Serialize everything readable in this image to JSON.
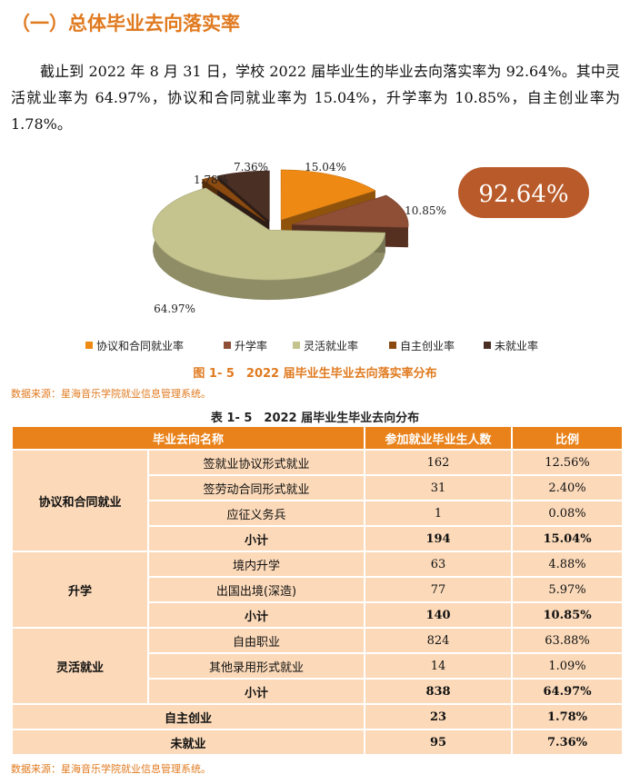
{
  "section": {
    "title": "（一）总体毕业去向落实率",
    "paragraph": "截止到 2022 年 8 月 31 日，学校 2022 届毕业生的毕业去向落实率为 92.64%。其中灵活就业率为 64.97%，协议和合同就业率为 15.04%，升学率为 10.85%，自主创业率为 1.78%。"
  },
  "figure": {
    "caption": "图 1- 5　2022 届毕业生毕业去向落实率分布",
    "source": "数据来源：星海音乐学院就业信息管理系统。",
    "badge": "92.64%",
    "badge_color": "#b95a2a"
  },
  "chart_data": {
    "type": "pie",
    "style": "3d-exploded",
    "categories": [
      "协议和合同就业率",
      "升学率",
      "灵活就业率",
      "自主创业率",
      "未就业率"
    ],
    "values": [
      15.04,
      10.85,
      64.97,
      1.78,
      7.36
    ],
    "labels": [
      "15.04%",
      "10.85%",
      "64.97%",
      "1.78%",
      "7.36%"
    ],
    "colors": [
      "#ee8a14",
      "#8e4f36",
      "#c5c48e",
      "#8a4a10",
      "#4a2f24"
    ],
    "legend_position": "bottom",
    "title": ""
  },
  "table": {
    "caption": "表 1- 5　2022 届毕业生毕业去向分布",
    "headers": [
      "毕业去向名称",
      "参加就业毕业生人数",
      "比例"
    ],
    "groups": [
      {
        "name": "协议和合同就业",
        "rows": [
          {
            "item": "签就业协议形式就业",
            "count": "162",
            "ratio": "12.56%"
          },
          {
            "item": "签劳动合同形式就业",
            "count": "31",
            "ratio": "2.40%"
          },
          {
            "item": "应征义务兵",
            "count": "1",
            "ratio": "0.08%"
          }
        ],
        "subtotal": {
          "label": "小计",
          "count": "194",
          "ratio": "15.04%"
        }
      },
      {
        "name": "升学",
        "rows": [
          {
            "item": "境内升学",
            "count": "63",
            "ratio": "4.88%"
          },
          {
            "item": "出国出境(深造)",
            "count": "77",
            "ratio": "5.97%"
          }
        ],
        "subtotal": {
          "label": "小计",
          "count": "140",
          "ratio": "10.85%"
        }
      },
      {
        "name": "灵活就业",
        "rows": [
          {
            "item": "自由职业",
            "count": "824",
            "ratio": "63.88%"
          },
          {
            "item": "其他录用形式就业",
            "count": "14",
            "ratio": "1.09%"
          }
        ],
        "subtotal": {
          "label": "小计",
          "count": "838",
          "ratio": "64.97%"
        }
      }
    ],
    "totals": [
      {
        "name": "自主创业",
        "count": "23",
        "ratio": "1.78%"
      },
      {
        "name": "未就业",
        "count": "95",
        "ratio": "7.36%"
      }
    ],
    "source": "数据来源：星海音乐学院就业信息管理系统。"
  }
}
